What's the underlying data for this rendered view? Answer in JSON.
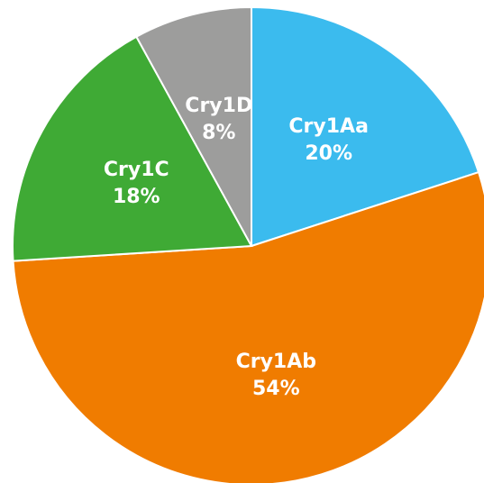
{
  "chart_data": {
    "type": "pie",
    "categories": [
      "Cry1Aa",
      "Cry1Ab",
      "Cry1C",
      "Cry1D"
    ],
    "values": [
      20,
      54,
      18,
      8
    ],
    "value_labels": [
      "20%",
      "54%",
      "18%",
      "8%"
    ],
    "colors": [
      "#3bbbee",
      "#f07c00",
      "#3faa35",
      "#9d9d9c"
    ]
  }
}
